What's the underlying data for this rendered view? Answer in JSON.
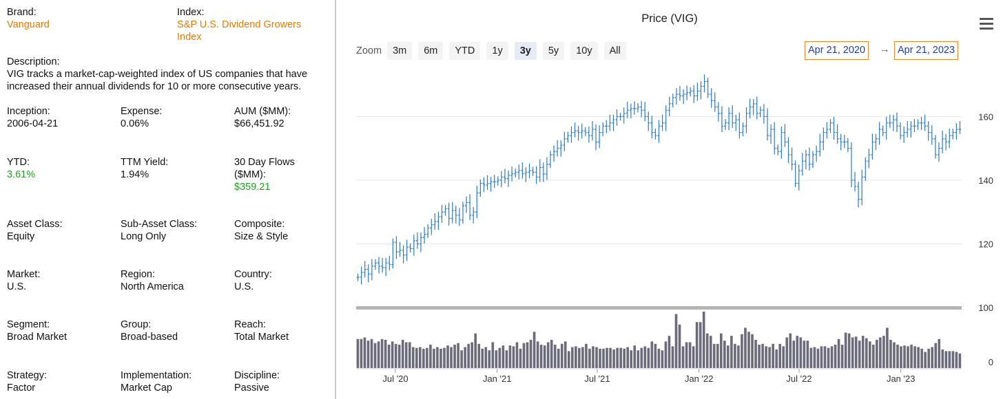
{
  "info": {
    "brand": {
      "label": "Brand:",
      "value": "Vanguard"
    },
    "index": {
      "label": "Index:",
      "value_line1": "S&P U.S. Dividend Growers",
      "value_line2": "Index"
    },
    "description": {
      "label": "Description:",
      "line1": "VIG tracks a market-cap-weighted index of US companies that have",
      "line2": "increased their annual dividends for 10 or more consecutive years."
    },
    "inception": {
      "label": "Inception:",
      "value": "2006-04-21"
    },
    "expense": {
      "label": "Expense:",
      "value": "0.06%"
    },
    "aum": {
      "label": "AUM ($MM):",
      "value": "$66,451.92"
    },
    "ytd": {
      "label": "YTD:",
      "value": "3.61%"
    },
    "ttm_yield": {
      "label": "TTM Yield:",
      "value": "1.94%"
    },
    "flows": {
      "label_line1": "30 Day Flows",
      "label_line2": "($MM):",
      "value": "$359.21"
    },
    "asset_class": {
      "label": "Asset Class:",
      "value": "Equity"
    },
    "sub_asset_class": {
      "label": "Sub-Asset Class:",
      "value": "Long Only"
    },
    "composite": {
      "label": "Composite:",
      "value": "Size & Style"
    },
    "market": {
      "label": "Market:",
      "value": "U.S."
    },
    "region": {
      "label": "Region:",
      "value": "North America"
    },
    "country": {
      "label": "Country:",
      "value": "U.S."
    },
    "segment": {
      "label": "Segment:",
      "value": "Broad Market"
    },
    "group": {
      "label": "Group:",
      "value": "Broad-based"
    },
    "reach": {
      "label": "Reach:",
      "value": "Total Market"
    },
    "strategy": {
      "label": "Strategy:",
      "value": "Factor"
    },
    "implementation": {
      "label": "Implementation:",
      "value": "Market Cap"
    },
    "discipline": {
      "label": "Discipline:",
      "value": "Passive"
    }
  },
  "chart_header": {
    "title": "Price (VIG)",
    "zoom_label": "Zoom",
    "zoom_buttons": [
      "3m",
      "6m",
      "YTD",
      "1y",
      "3y",
      "5y",
      "10y",
      "All"
    ],
    "active_zoom": "3y",
    "range_from": "Apr 21, 2020",
    "range_arrow": "→",
    "range_to": "Apr 21, 2023",
    "menu_icon": "hamburger-menu-icon"
  },
  "colors": {
    "price": "#2b7bc0",
    "volume": "#6b6b7b",
    "accent_orange": "#e07b00",
    "positive_green": "#1aa31a"
  },
  "chart_data": {
    "type": "ohlc",
    "title": "Price (VIG)",
    "price_ylim": [
      100,
      175
    ],
    "price_ticks": [
      100,
      120,
      140,
      160
    ],
    "volume_ticks": [
      0
    ],
    "x_ticks": [
      "Jul '20",
      "Jan '21",
      "Jul '21",
      "Jan '22",
      "Jul '22",
      "Jan '23"
    ],
    "x_range": [
      "2020-04-21",
      "2023-04-21"
    ],
    "grid": true,
    "weekly_close": [
      109.5,
      111,
      112,
      110.5,
      113,
      114,
      113,
      112.5,
      114,
      113.5,
      120.5,
      117.5,
      118,
      116.5,
      119,
      118.5,
      121,
      120,
      122,
      123,
      125,
      126,
      127,
      128.5,
      130,
      131,
      128,
      130.5,
      129,
      127.5,
      132,
      133,
      129,
      130,
      136,
      139,
      138.5,
      139,
      139.5,
      139.5,
      140,
      141,
      140.5,
      141.5,
      142,
      142.5,
      143,
      142,
      142.5,
      143,
      142.5,
      141,
      144,
      142,
      145,
      148,
      149,
      150,
      151,
      153,
      154,
      155,
      155.5,
      155,
      155.5,
      155,
      154,
      156,
      152,
      155,
      157,
      157,
      158,
      159,
      160,
      160,
      161,
      162,
      162.5,
      162.5,
      163,
      162,
      160,
      158,
      155,
      154,
      157,
      158,
      162,
      164,
      166,
      167,
      166.5,
      167,
      167.5,
      168,
      166.5,
      168,
      169.5,
      171,
      167,
      165,
      163,
      161,
      157,
      158,
      161,
      158,
      159,
      155,
      157,
      161,
      163,
      164,
      161,
      162,
      160,
      154,
      156,
      150,
      149,
      155,
      152,
      148,
      145,
      139,
      143,
      146,
      148,
      145,
      148,
      149,
      152,
      155,
      156,
      158,
      155,
      153,
      152,
      152,
      150,
      140,
      138,
      134,
      141,
      146,
      148,
      152,
      153,
      156,
      155,
      158,
      158,
      159,
      157,
      154,
      155,
      156,
      157,
      157,
      158,
      158,
      157,
      155,
      153,
      148,
      150,
      153,
      152,
      154,
      155,
      156,
      156
    ],
    "weekly_volume": [
      36,
      36,
      38,
      34,
      36,
      31,
      33,
      36,
      35,
      29,
      33,
      30,
      29,
      35,
      32,
      32,
      26,
      25,
      26,
      24,
      25,
      29,
      24,
      26,
      24,
      25,
      28,
      26,
      29,
      31,
      22,
      26,
      30,
      32,
      43,
      30,
      24,
      26,
      22,
      32,
      22,
      25,
      28,
      22,
      28,
      27,
      32,
      24,
      31,
      32,
      35,
      45,
      33,
      29,
      28,
      32,
      35,
      29,
      24,
      30,
      33,
      21,
      26,
      27,
      25,
      26,
      30,
      24,
      27,
      26,
      24,
      24,
      25,
      25,
      23,
      25,
      25,
      24,
      26,
      22,
      28,
      22,
      25,
      27,
      25,
      33,
      30,
      24,
      22,
      33,
      40,
      27,
      67,
      54,
      27,
      32,
      32,
      27,
      57,
      57,
      73,
      43,
      40,
      30,
      30,
      43,
      34,
      28,
      40,
      30,
      28,
      42,
      50,
      45,
      42,
      35,
      29,
      30,
      27,
      26,
      30,
      23,
      30,
      27,
      38,
      43,
      34,
      40,
      38,
      34,
      34,
      25,
      26,
      24,
      27,
      27,
      25,
      27,
      29,
      36,
      29,
      44,
      43,
      38,
      39,
      34,
      40,
      37,
      33,
      29,
      35,
      38,
      40,
      50,
      35,
      32,
      29,
      27,
      28,
      27,
      29,
      27,
      26,
      24,
      20,
      24,
      26,
      31,
      36,
      23,
      21,
      21,
      21,
      20,
      18
    ]
  }
}
